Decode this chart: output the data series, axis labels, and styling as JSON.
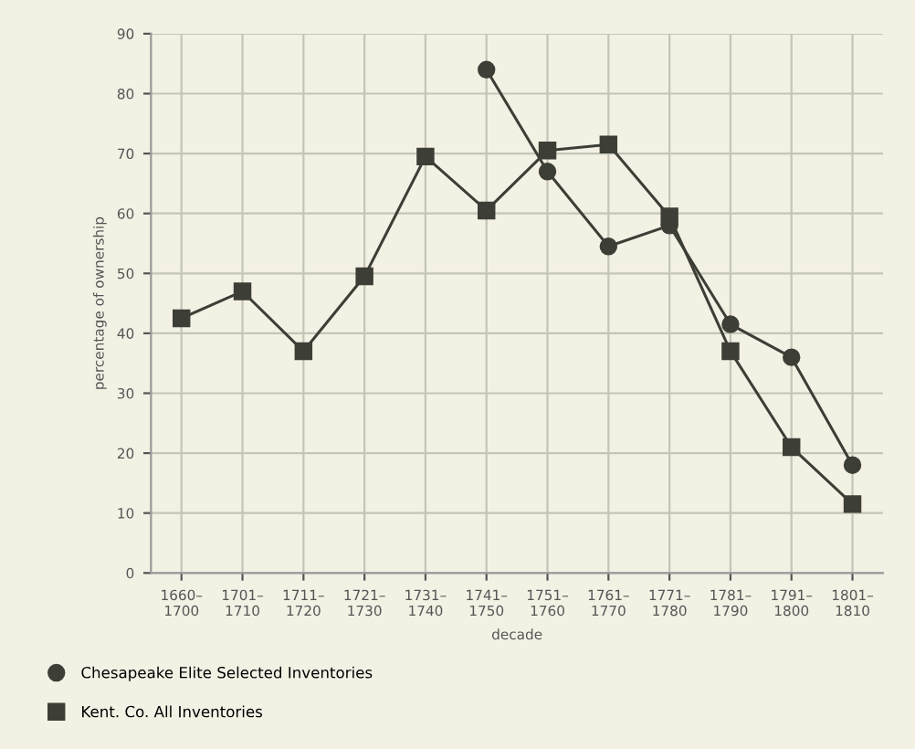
{
  "chart_data": {
    "type": "line",
    "xlabel": "decade",
    "ylabel": "percentage of ownership",
    "categories": [
      "1660–\n1700",
      "1701–\n1710",
      "1711–\n1720",
      "1721–\n1730",
      "1731–\n1740",
      "1741–\n1750",
      "1751–\n1760",
      "1761–\n1770",
      "1771–\n1780",
      "1781–\n1790",
      "1791–\n1800",
      "1801–\n1810"
    ],
    "series": [
      {
        "name": "Chesapeake Elite Selected Inventories",
        "color": "#3d3f36",
        "marker": "circle",
        "values": [
          null,
          null,
          null,
          null,
          null,
          84,
          67,
          54.5,
          58,
          41.5,
          36,
          18
        ]
      },
      {
        "name": "Kent. Co. All Inventories",
        "color": "#3d3f36",
        "marker": "square",
        "values": [
          42.5,
          47,
          37,
          49.5,
          69.5,
          60.5,
          70.5,
          71.5,
          59.5,
          37,
          21,
          11.5
        ]
      }
    ],
    "ylim": [
      0,
      90
    ],
    "yticks": [
      0,
      10,
      20,
      30,
      40,
      50,
      60,
      70,
      80,
      90
    ],
    "grid": true,
    "legend": "bottom left"
  }
}
